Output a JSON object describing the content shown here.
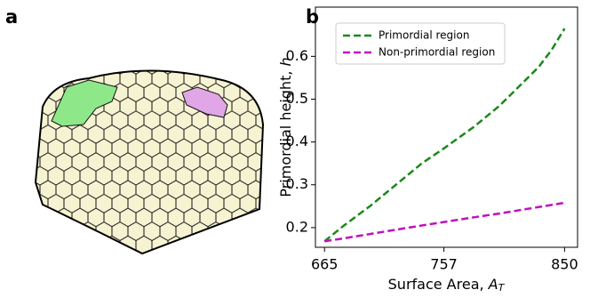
{
  "panels": [
    "a",
    "b"
  ],
  "chart_data": {
    "type": "line",
    "x_label": {
      "text": "Surface Area, ",
      "var": "A",
      "sub": "T"
    },
    "y_label": {
      "text": "Primordial height, ",
      "var": "h"
    },
    "x": [
      665,
      680,
      700,
      720,
      740,
      757,
      780,
      800,
      820,
      830,
      840,
      850
    ],
    "series": [
      {
        "name": "Primordial region",
        "color": "#1a8a1a",
        "values": [
          0.168,
          0.205,
          0.25,
          0.3,
          0.35,
          0.385,
          0.435,
          0.485,
          0.545,
          0.575,
          0.615,
          0.665
        ]
      },
      {
        "name": "Non-primordial region",
        "color": "#c010c0",
        "values": [
          0.168,
          0.175,
          0.185,
          0.195,
          0.205,
          0.213,
          0.224,
          0.233,
          0.243,
          0.248,
          0.253,
          0.258
        ]
      }
    ],
    "xlim": [
      658,
      860
    ],
    "ylim": [
      0.154,
      0.715
    ],
    "xticks": [
      665,
      757,
      850
    ],
    "yticks": [
      0.2,
      0.3,
      0.4,
      0.5,
      0.6
    ],
    "legend": "upper left",
    "line_style": "dashed"
  }
}
